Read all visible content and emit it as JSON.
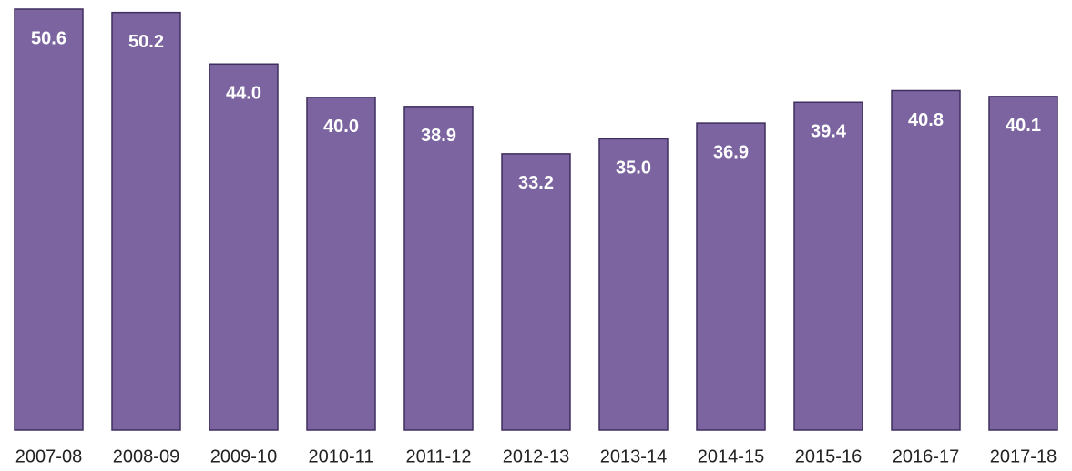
{
  "chart_data": {
    "type": "bar",
    "categories": [
      "2007-08",
      "2008-09",
      "2009-10",
      "2010-11",
      "2011-12",
      "2012-13",
      "2013-14",
      "2014-15",
      "2015-16",
      "2016-17",
      "2017-18"
    ],
    "values": [
      50.6,
      50.2,
      44.0,
      40.0,
      38.9,
      33.2,
      35.0,
      36.9,
      39.4,
      40.8,
      40.1
    ],
    "value_labels": [
      "50.6",
      "50.2",
      "44.0",
      "40.0",
      "38.9",
      "33.2",
      "35.0",
      "36.9",
      "39.4",
      "40.8",
      "40.1"
    ],
    "color": "#7b64a0"
  }
}
